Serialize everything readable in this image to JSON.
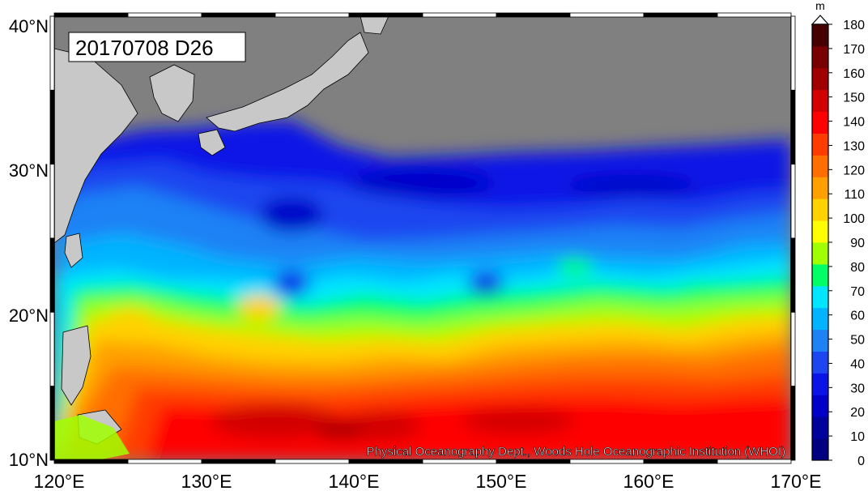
{
  "map": {
    "title": "20170708 D26",
    "credit": "Physical Oceanography Dept., Woods Hole Oceanographic Institution (WHOI)",
    "lat_labels": [
      "10°N",
      "20°N",
      "30°N",
      "40°N"
    ],
    "lon_labels": [
      "120°E",
      "130°E",
      "140°E",
      "150°E",
      "160°E",
      "170°E"
    ],
    "land_color": "#c8c8c8",
    "no_data_color": "#808080"
  },
  "colorbar": {
    "unit": "m",
    "ticks": [
      "0",
      "10",
      "20",
      "30",
      "40",
      "50",
      "60",
      "70",
      "80",
      "90",
      "100",
      "110",
      "120",
      "130",
      "140",
      "150",
      "160",
      "170",
      "180"
    ],
    "colors": [
      "#000080",
      "#00009c",
      "#0000c8",
      "#0a14e6",
      "#1e46f0",
      "#1e82f5",
      "#00b4ff",
      "#00e6ff",
      "#00ff64",
      "#a0ff00",
      "#ffff00",
      "#ffd200",
      "#ffa000",
      "#ff6e00",
      "#ff3c00",
      "#ff0000",
      "#d20000",
      "#a00000",
      "#780000",
      "#460000"
    ]
  }
}
